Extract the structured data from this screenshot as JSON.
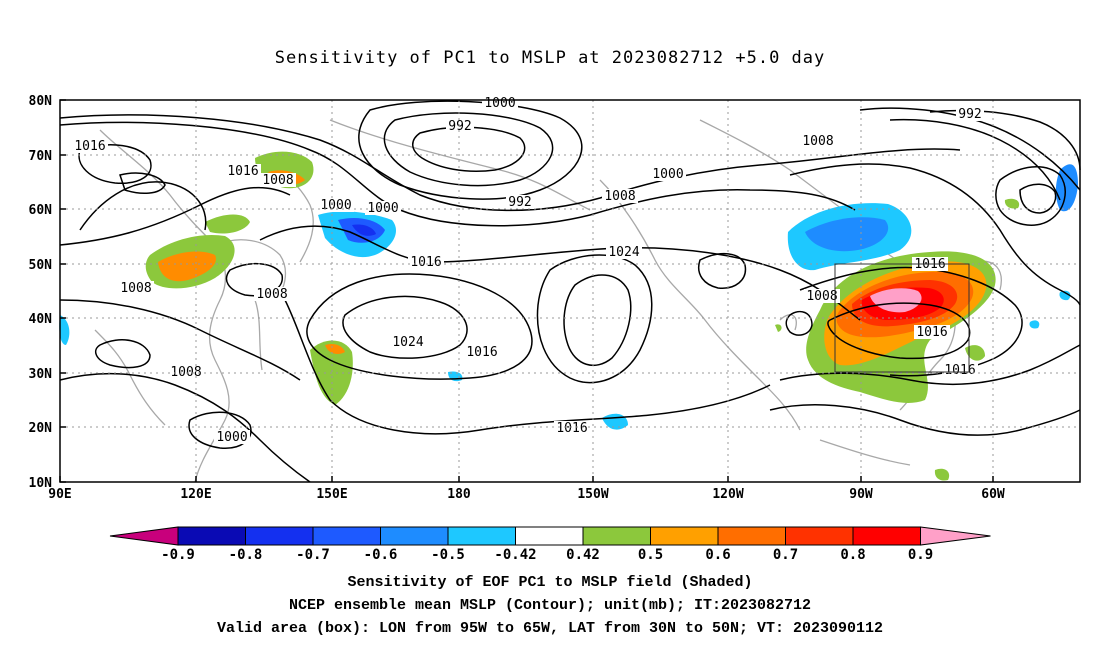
{
  "title": "Sensitivity of PC1 to MSLP at 2023082712 +5.0 day",
  "map": {
    "lon_labels": [
      "90E",
      "120E",
      "150E",
      "180",
      "150W",
      "120W",
      "90W",
      "60W"
    ],
    "lat_labels": [
      "80N",
      "70N",
      "60N",
      "50N",
      "40N",
      "30N",
      "20N",
      "10N"
    ],
    "contour_labels": [
      {
        "text": "1000"
      },
      {
        "text": "992"
      },
      {
        "text": "1016"
      },
      {
        "text": "1016"
      },
      {
        "text": "1008"
      },
      {
        "text": "1000"
      },
      {
        "text": "1000"
      },
      {
        "text": "1000"
      },
      {
        "text": "992"
      },
      {
        "text": "1008"
      },
      {
        "text": "1016"
      },
      {
        "text": "1024"
      },
      {
        "text": "1008"
      },
      {
        "text": "1008"
      },
      {
        "text": "1024"
      },
      {
        "text": "1016"
      },
      {
        "text": "1008"
      },
      {
        "text": "1000"
      },
      {
        "text": "1016"
      },
      {
        "text": "1008"
      },
      {
        "text": "992"
      },
      {
        "text": "1008"
      },
      {
        "text": "1016"
      },
      {
        "text": "1016"
      },
      {
        "text": "1016"
      }
    ],
    "valid_box": {
      "lon_from": "95W",
      "lon_to": "65W",
      "lat_from": "30N",
      "lat_to": "50N"
    }
  },
  "colorbar": {
    "labels": [
      "-0.9",
      "-0.8",
      "-0.7",
      "-0.6",
      "-0.5",
      "-0.42",
      "0.42",
      "0.5",
      "0.6",
      "0.7",
      "0.8",
      "0.9"
    ],
    "colors": [
      "#c8007c",
      "#0a0ab4",
      "#1430f0",
      "#1e5aff",
      "#1e8cff",
      "#1ec8ff",
      "#ffffff",
      "#8cc83c",
      "#ffa000",
      "#ff6e00",
      "#ff3200",
      "#ff0000",
      "#ffa0c8"
    ]
  },
  "captions": {
    "line1": "Sensitivity of EOF PC1 to MSLP field (Shaded)",
    "line2": "NCEP ensemble mean MSLP (Contour); unit(mb); IT:2023082712",
    "line3": "Valid area (box): LON from 95W to 65W, LAT from 30N to 50N; VT: 2023090112"
  }
}
